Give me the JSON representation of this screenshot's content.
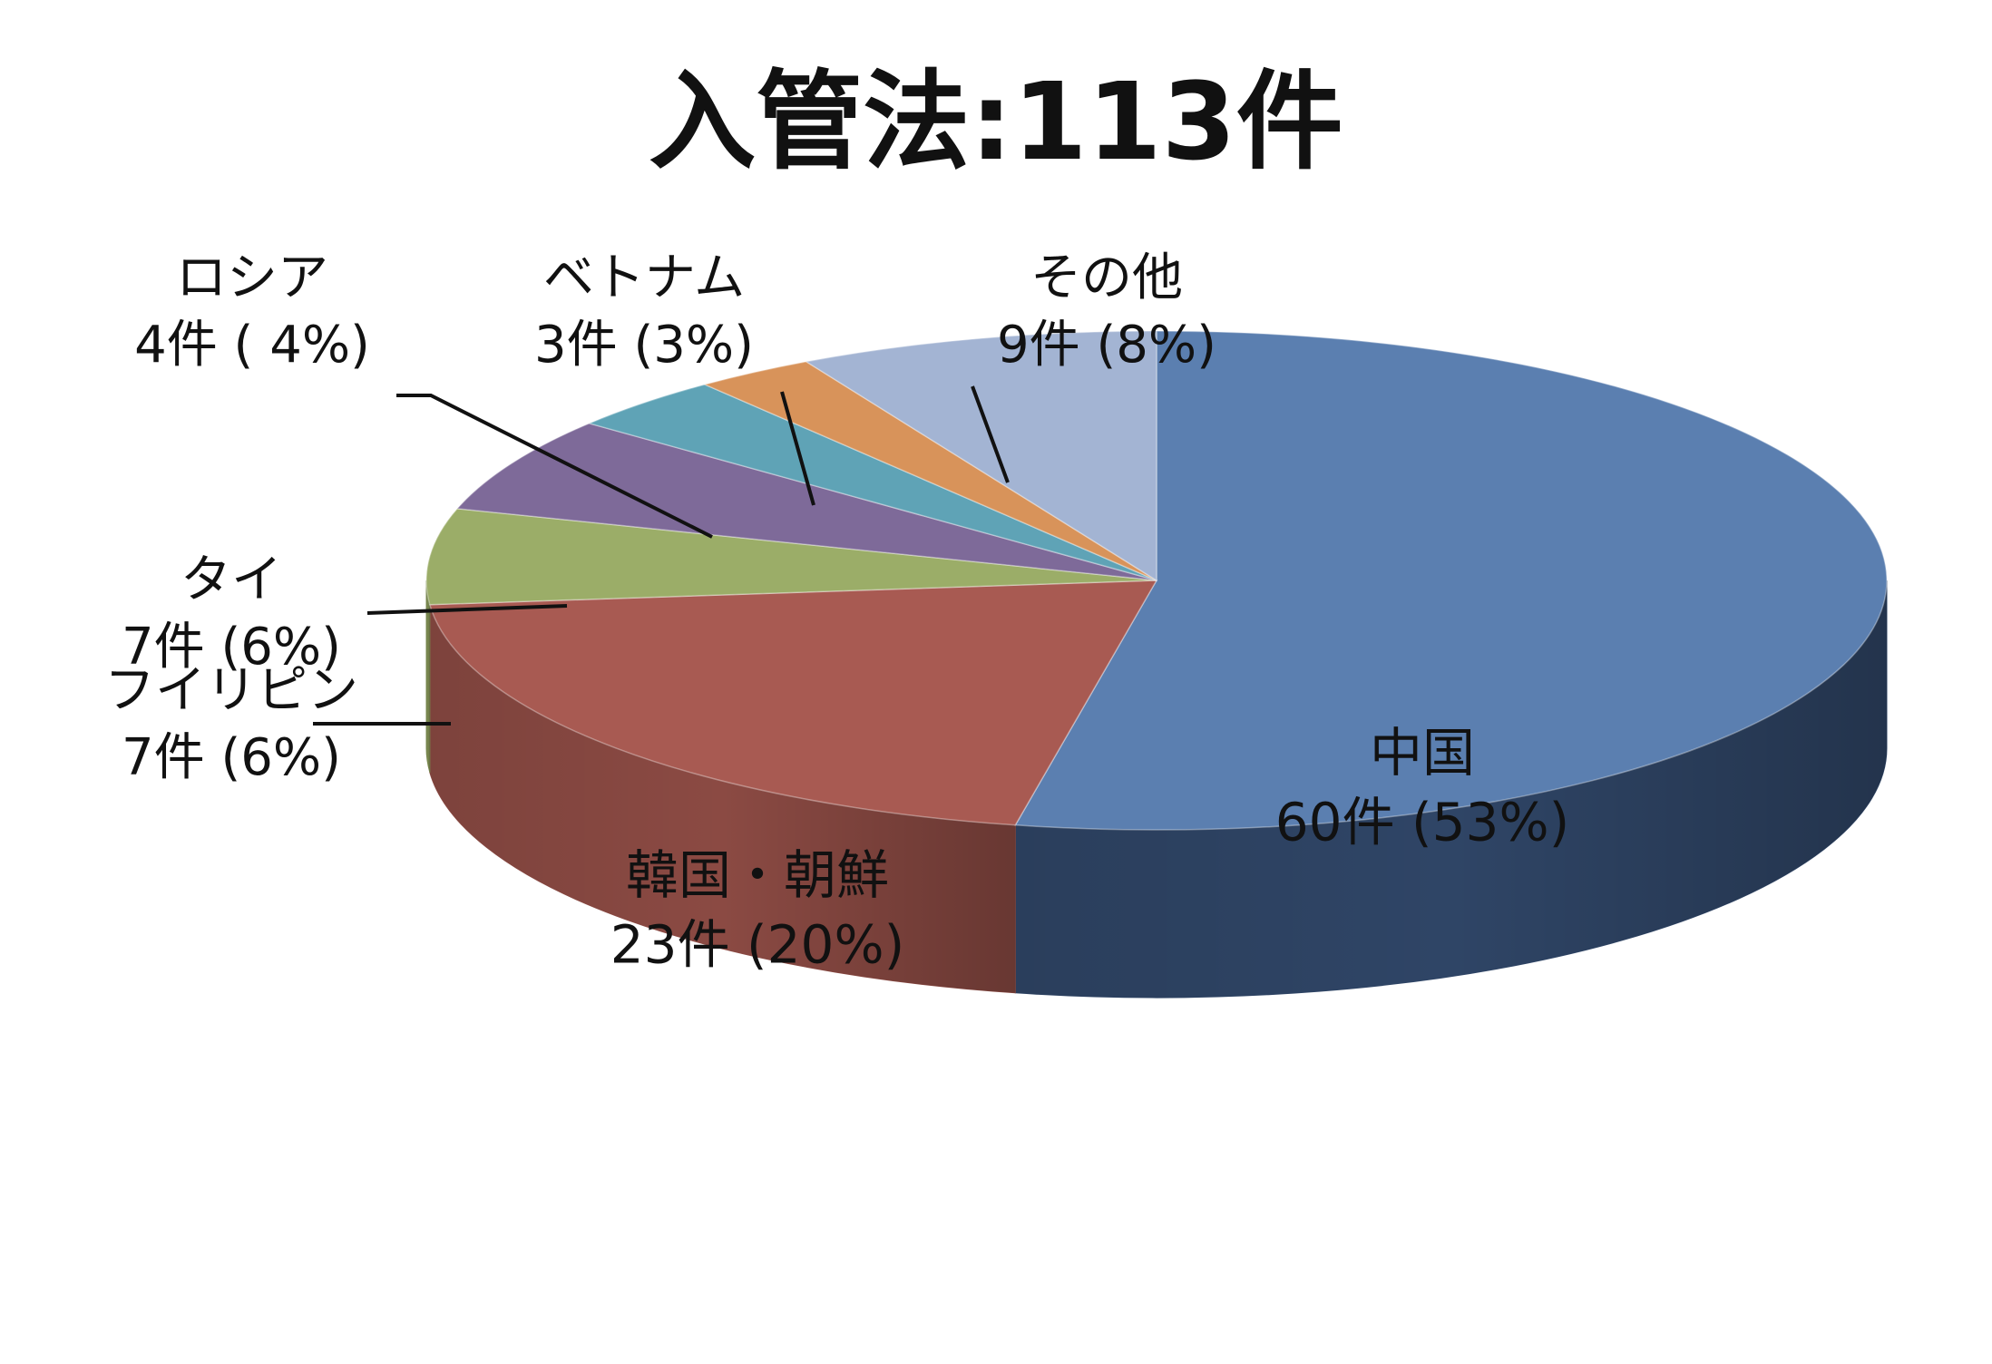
{
  "chart_data": {
    "type": "pie",
    "title": "入管法:113件",
    "start_angle_deg": 90,
    "direction": "clockwise",
    "is_3d": true,
    "legend": "none",
    "slices": [
      {
        "name": "中国",
        "value": 60,
        "percent_label": "60件 (53%)",
        "color": "#5b7fb0",
        "side_color": "#2f4566"
      },
      {
        "name": "韓国・朝鮮",
        "value": 23,
        "percent_label": "23件 (20%)",
        "color": "#a85a52",
        "side_color": "#8b4a43"
      },
      {
        "name": "フイリピン",
        "value": 7,
        "percent_label": "7件 (6%)",
        "color": "#9bad68",
        "side_color": "#7d8c52"
      },
      {
        "name": "タイ",
        "value": 7,
        "percent_label": "7件 (6%)",
        "color": "#7e6a99",
        "side_color": "#65547b"
      },
      {
        "name": "ロシア",
        "value": 4,
        "percent_label": "4件 ( 4%)",
        "color": "#5fa3b6",
        "side_color": "#4b8393"
      },
      {
        "name": "ベトナム",
        "value": 3,
        "percent_label": "3件 (3%)",
        "color": "#d8935a",
        "side_color": "#b07546"
      },
      {
        "name": "その他",
        "value": 9,
        "percent_label": "9件 (8%)",
        "color": "#a3b4d3",
        "side_color": "#8797b4"
      }
    ]
  }
}
